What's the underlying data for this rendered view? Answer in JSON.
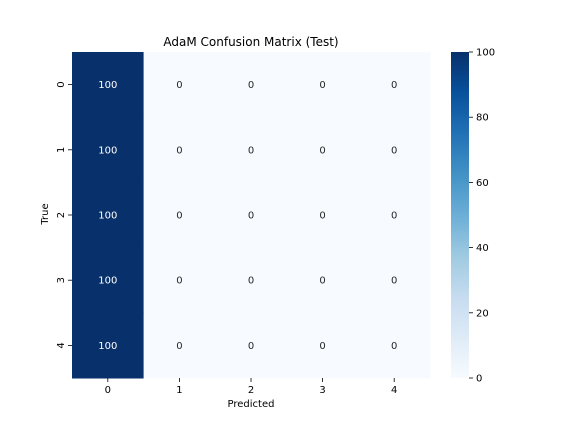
{
  "chart_data": {
    "type": "heatmap",
    "title": "AdaM Confusion Matrix (Test)",
    "xlabel": "Predicted",
    "ylabel": "True",
    "x_categories": [
      "0",
      "1",
      "2",
      "3",
      "4"
    ],
    "y_categories": [
      "0",
      "1",
      "2",
      "3",
      "4"
    ],
    "values": [
      [
        100,
        0,
        0,
        0,
        0
      ],
      [
        100,
        0,
        0,
        0,
        0
      ],
      [
        100,
        0,
        0,
        0,
        0
      ],
      [
        100,
        0,
        0,
        0,
        0
      ],
      [
        100,
        0,
        0,
        0,
        0
      ]
    ],
    "colormap": "Blues",
    "annotations": true,
    "colorbar": {
      "range": [
        0,
        100
      ],
      "ticks": [
        "0",
        "20",
        "40",
        "60",
        "80",
        "100"
      ]
    },
    "colors": {
      "high": "#08306b",
      "low": "#f7fbff",
      "text_on_dark": "#ffffff",
      "text_on_light": "#262626"
    }
  }
}
